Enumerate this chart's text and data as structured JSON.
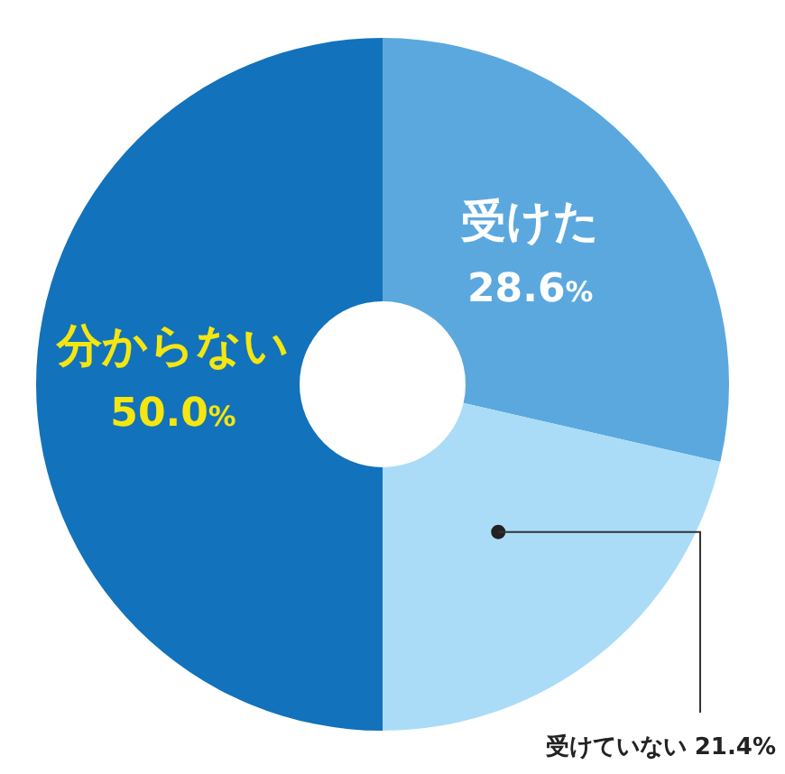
{
  "chart_data": {
    "type": "donut",
    "categories": [
      "受けた",
      "受けていない",
      "分からない"
    ],
    "values": [
      28.6,
      21.4,
      50.0
    ],
    "colors": [
      "#5ba8df",
      "#aadcf7",
      "#1272bb"
    ],
    "value_labels": [
      "28.6%",
      "21.4%",
      "50.0%"
    ]
  }
}
